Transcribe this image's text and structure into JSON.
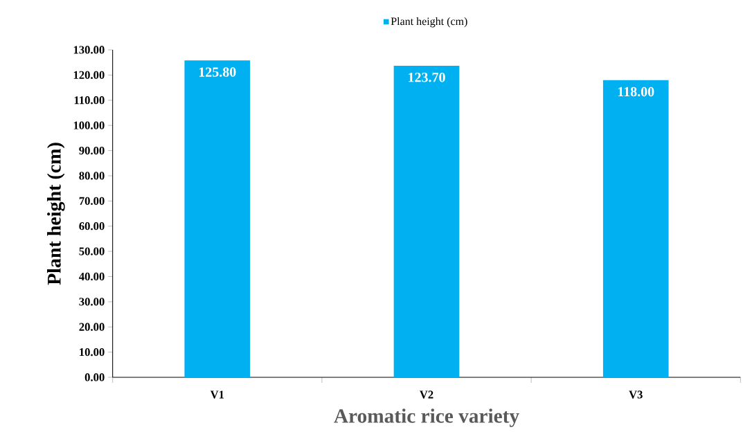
{
  "chart_data": {
    "type": "bar",
    "xlabel": "Aromatic rice variety",
    "ylabel": "Plant height (cm)",
    "categories": [
      "V1",
      "V2",
      "V3"
    ],
    "series": [
      {
        "name": "Plant height (cm)",
        "color": "#00b0f0",
        "values": [
          125.8,
          123.7,
          118.0
        ],
        "value_labels": [
          "125.80",
          "123.70",
          "118.00"
        ]
      }
    ],
    "ylim": [
      0,
      130
    ],
    "yticks": [
      {
        "value": 0,
        "label": "0.00"
      },
      {
        "value": 10,
        "label": "10.00"
      },
      {
        "value": 20,
        "label": "20.00"
      },
      {
        "value": 30,
        "label": "30.00"
      },
      {
        "value": 40,
        "label": "40.00"
      },
      {
        "value": 50,
        "label": "50.00"
      },
      {
        "value": 60,
        "label": "60.00"
      },
      {
        "value": 70,
        "label": "70.00"
      },
      {
        "value": 80,
        "label": "80.00"
      },
      {
        "value": 90,
        "label": "90.00"
      },
      {
        "value": 100,
        "label": "100.00"
      },
      {
        "value": 110,
        "label": "110.00"
      },
      {
        "value": 120,
        "label": "120.00"
      },
      {
        "value": 130,
        "label": "130.00"
      }
    ],
    "legend": "top",
    "grid": false
  }
}
